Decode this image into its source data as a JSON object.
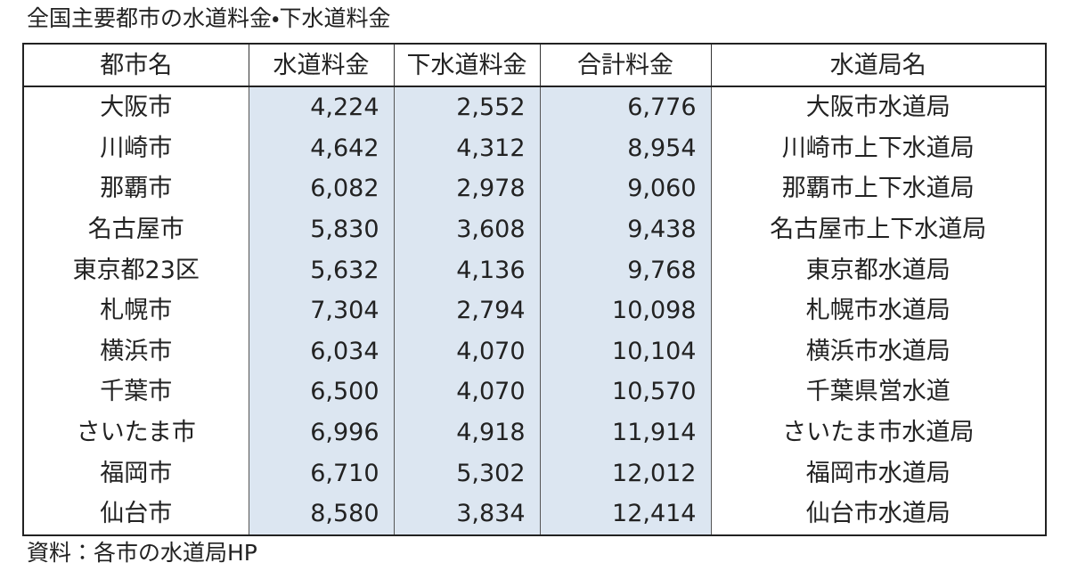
{
  "title": "全国主要都市の水道料金・下水道料金",
  "table": {
    "header": [
      "都市名",
      "水道料金",
      "下水道料金",
      "合計料金",
      "水道局名"
    ],
    "rows": [
      [
        "大阪市",
        "4,224",
        "2,552",
        "6,776",
        "大阪市水道局"
      ],
      [
        "川崎市",
        "4,642",
        "4,312",
        "8,954",
        "川崎市上下水道局"
      ],
      [
        "那覇市",
        "6,082",
        "2,978",
        "9,060",
        "那覇市上下水道局"
      ],
      [
        "名古屋市",
        "5,830",
        "3,608",
        "9,438",
        "名古屋市上下水道局"
      ],
      [
        "東京都23区",
        "5,632",
        "4,136",
        "9,768",
        "東京都水道局"
      ],
      [
        "札幌市",
        "7,304",
        "2,794",
        "10,098",
        "札幌市水道局"
      ],
      [
        "横浜市",
        "6,034",
        "4,070",
        "10,104",
        "横浜市水道局"
      ],
      [
        "千葉市",
        "6,500",
        "4,070",
        "10,570",
        "千葉県営水道"
      ],
      [
        "さいたま市",
        "6,996",
        "4,918",
        "11,914",
        "さいたま市水道局"
      ],
      [
        "福岡市",
        "6,710",
        "5,302",
        "12,012",
        "福岡市水道局"
      ],
      [
        "仙台市",
        "8,580",
        "3,834",
        "12,414",
        "仙台市水道局"
      ]
    ]
  },
  "source": "資料：各市の水道局HP"
}
